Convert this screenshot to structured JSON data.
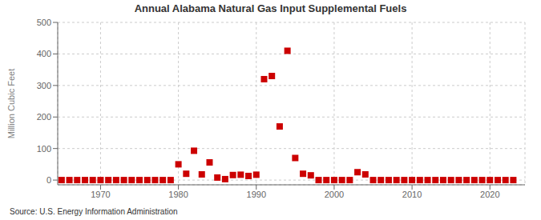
{
  "chart_data": {
    "type": "scatter",
    "title": "Annual Alabama Natural Gas Input Supplemental Fuels",
    "ylabel": "Million Cubic Feet",
    "annotation": "Source: U.S. Energy Information Administration",
    "color": "#cc0000",
    "marker": "square",
    "grid": true,
    "xlim": [
      1964.5,
      2024.5
    ],
    "ylim": [
      -15,
      500
    ],
    "xticks": [
      1970,
      1980,
      1990,
      2000,
      2010,
      2020
    ],
    "yticks": [
      0,
      100,
      200,
      300,
      400,
      500
    ],
    "x": [
      1965,
      1966,
      1967,
      1968,
      1969,
      1970,
      1971,
      1972,
      1973,
      1974,
      1975,
      1976,
      1977,
      1978,
      1979,
      1980,
      1981,
      1982,
      1983,
      1984,
      1985,
      1986,
      1987,
      1988,
      1989,
      1990,
      1991,
      1992,
      1993,
      1994,
      1995,
      1996,
      1997,
      1998,
      1999,
      2000,
      2001,
      2002,
      2003,
      2004,
      2005,
      2006,
      2007,
      2008,
      2009,
      2010,
      2011,
      2012,
      2013,
      2014,
      2015,
      2016,
      2017,
      2018,
      2019,
      2020,
      2021,
      2022,
      2023
    ],
    "values": [
      0,
      0,
      0,
      0,
      0,
      0,
      0,
      0,
      0,
      0,
      0,
      0,
      0,
      0,
      0,
      50,
      20,
      93,
      18,
      56,
      8,
      3,
      16,
      17,
      13,
      17,
      320,
      330,
      170,
      410,
      70,
      20,
      15,
      0,
      0,
      0,
      0,
      0,
      25,
      18,
      0,
      0,
      0,
      0,
      0,
      0,
      0,
      0,
      0,
      0,
      0,
      0,
      0,
      0,
      0,
      0,
      0,
      0,
      0
    ]
  }
}
